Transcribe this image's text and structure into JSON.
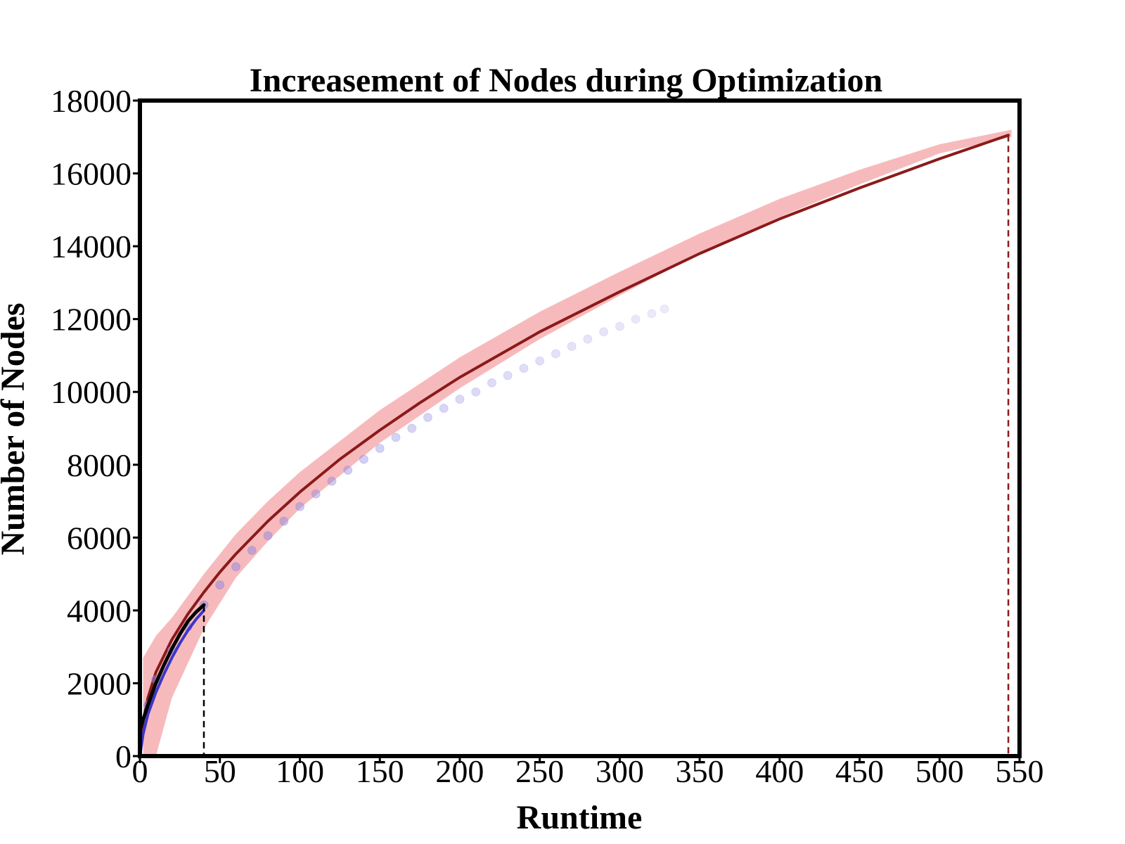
{
  "chart_data": {
    "type": "line",
    "title": "Increasement of Nodes during Optimization",
    "xlabel": "Runtime",
    "ylabel": "Number of Nodes",
    "xlim": [
      0,
      550
    ],
    "ylim": [
      0,
      18000
    ],
    "xticks": [
      0,
      50,
      100,
      150,
      200,
      250,
      300,
      350,
      400,
      450,
      500,
      550
    ],
    "yticks": [
      0,
      2000,
      4000,
      6000,
      8000,
      10000,
      12000,
      14000,
      16000,
      18000
    ],
    "grid": false,
    "legend": "none",
    "colors": {
      "red_band": "#f4a3a5",
      "red_line": "#8b1a1a",
      "blue_points": "#8a84e0",
      "blue_line": "#3b36c8",
      "black_line": "#000000"
    },
    "series": [
      {
        "style": "band",
        "color": "red_band",
        "x": [
          2,
          10,
          20,
          40,
          60,
          80,
          100,
          150,
          200,
          250,
          300,
          350,
          400,
          450,
          500,
          545
        ],
        "lower": [
          0,
          0,
          1600,
          3500,
          4900,
          5900,
          6800,
          8600,
          10100,
          11450,
          12650,
          13800,
          14800,
          15700,
          16550,
          17000
        ],
        "upper": [
          2700,
          3300,
          3800,
          5000,
          6100,
          7000,
          7800,
          9500,
          10950,
          12200,
          13300,
          14350,
          15300,
          16100,
          16800,
          17200
        ]
      },
      {
        "style": "line",
        "color": "red_line",
        "x": [
          0,
          5,
          10,
          20,
          30,
          40,
          50,
          60,
          80,
          100,
          125,
          150,
          175,
          200,
          250,
          300,
          350,
          400,
          450,
          500,
          543
        ],
        "y": [
          500,
          1600,
          2300,
          3200,
          3900,
          4500,
          5050,
          5550,
          6450,
          7250,
          8150,
          8950,
          9700,
          10400,
          11650,
          12750,
          13800,
          14750,
          15600,
          16400,
          17050
        ]
      },
      {
        "style": "points",
        "color": "blue_points",
        "x": [
          5,
          10,
          20,
          30,
          40,
          50,
          60,
          70,
          80,
          90,
          100,
          110,
          120,
          130,
          140,
          150,
          160,
          170,
          180,
          190,
          200,
          210,
          220,
          230,
          240,
          250,
          260,
          270,
          280,
          290,
          300,
          310,
          320,
          328
        ],
        "y": [
          1400,
          2100,
          2900,
          3550,
          4150,
          4700,
          5200,
          5650,
          6050,
          6450,
          6850,
          7200,
          7550,
          7850,
          8150,
          8450,
          8750,
          9000,
          9300,
          9550,
          9800,
          10000,
          10250,
          10450,
          10650,
          10850,
          11050,
          11250,
          11450,
          11650,
          11800,
          12000,
          12150,
          12280
        ]
      },
      {
        "style": "line",
        "color": "blue_line",
        "x": [
          0,
          2,
          5,
          10,
          15,
          20,
          25,
          30,
          35,
          40
        ],
        "y": [
          0,
          600,
          1150,
          1750,
          2250,
          2700,
          3100,
          3450,
          3750,
          4000
        ]
      },
      {
        "style": "line",
        "color": "black_line",
        "x": [
          0,
          2,
          5,
          10,
          15,
          20,
          25,
          30,
          35,
          40
        ],
        "y": [
          700,
          1000,
          1400,
          2000,
          2500,
          2950,
          3350,
          3700,
          3950,
          4150
        ]
      }
    ],
    "vlines": [
      {
        "x": 40,
        "y": 4150,
        "color": "black_line",
        "style": "dashed"
      },
      {
        "x": 543,
        "y": 17050,
        "color": "red_line",
        "style": "dashed"
      }
    ]
  }
}
